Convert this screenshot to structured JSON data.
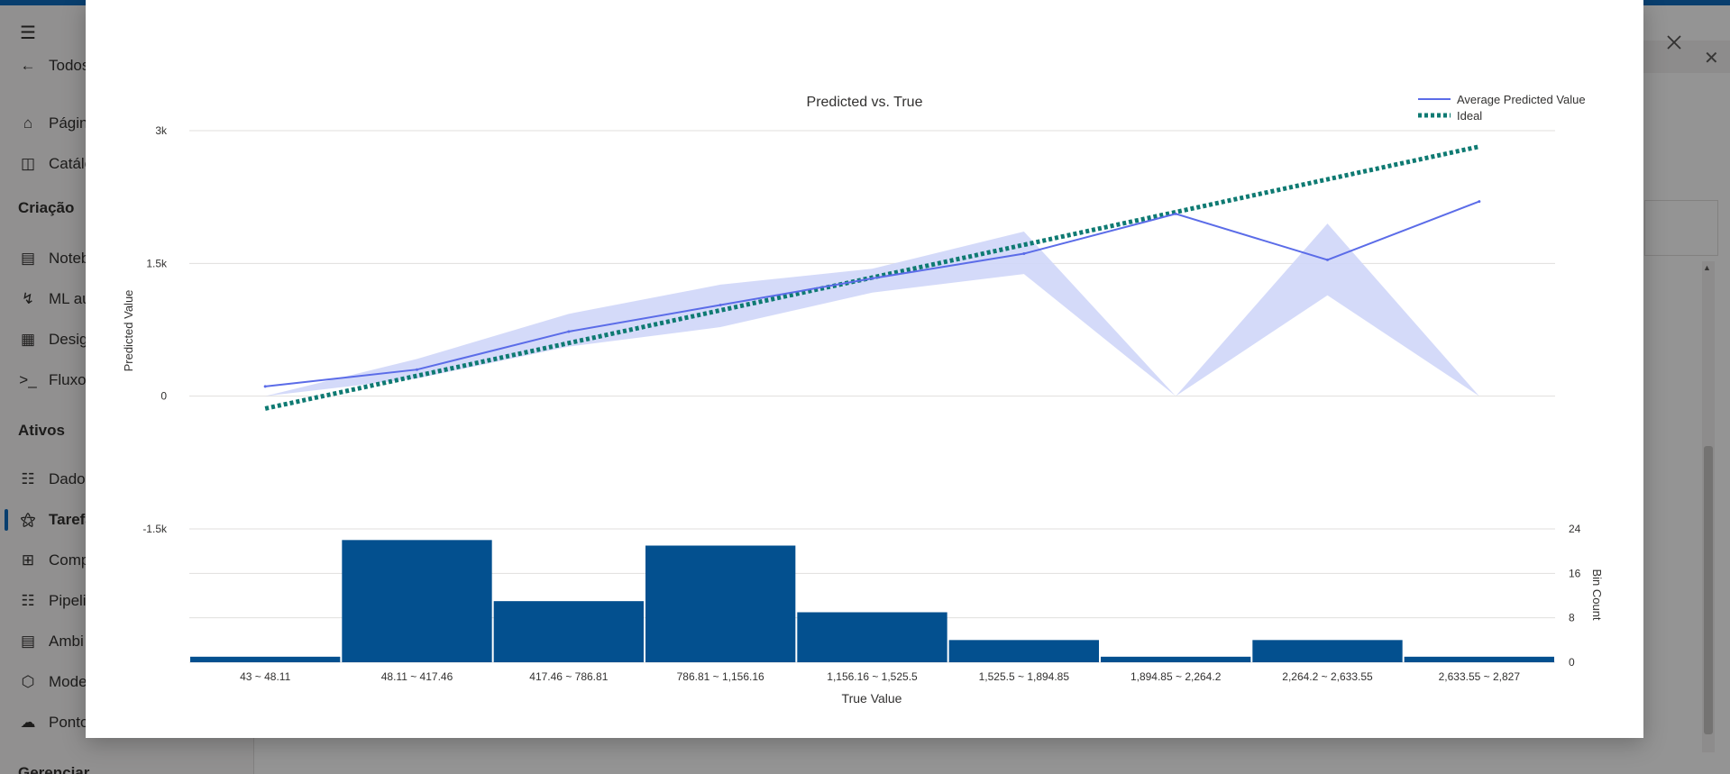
{
  "sidebar": {
    "items": [
      {
        "label": "Todos",
        "icon": "back-arrow-icon"
      },
      {
        "label": "Págin",
        "icon": "home-icon"
      },
      {
        "label": "Catálo",
        "icon": "catalog-icon"
      }
    ],
    "section_create": "Criação",
    "create_items": [
      {
        "label": "Noteb",
        "icon": "notebook-icon"
      },
      {
        "label": "ML au",
        "icon": "automl-icon"
      },
      {
        "label": "Desig",
        "icon": "designer-icon"
      },
      {
        "label": "Fluxo",
        "icon": "prompt-flow-icon"
      }
    ],
    "section_assets": "Ativos",
    "asset_items": [
      {
        "label": "Dado",
        "icon": "data-icon"
      },
      {
        "label": "Tarefa",
        "icon": "jobs-flask-icon",
        "active": true
      },
      {
        "label": "Comp",
        "icon": "components-icon"
      },
      {
        "label": "Pipeli",
        "icon": "pipeline-icon"
      },
      {
        "label": "Ambi",
        "icon": "environment-icon"
      },
      {
        "label": "Mode",
        "icon": "model-cube-icon"
      },
      {
        "label": "Ponto",
        "icon": "endpoint-icon"
      }
    ],
    "section_manage": "Gerenciar"
  },
  "modal": {
    "close_icon": "close-icon"
  },
  "colors": {
    "predicted_line": "#5b6ce8",
    "band_fill": "#cfd6f8",
    "ideal_line": "#0e7a72",
    "bars": "#03508f",
    "accent": "#0f6cbd"
  },
  "chart_data": {
    "type": "line",
    "title": "Predicted vs. True",
    "ylabel": "Predicted Value",
    "xlabel": "True Value",
    "y2label": "Bin Count",
    "ylim": [
      -1500,
      3000
    ],
    "y_ticks": [
      "3k",
      "1.5k",
      "0",
      "-1.5k"
    ],
    "y_tick_values": [
      3000,
      1500,
      0,
      -1500
    ],
    "y2lim": [
      0,
      24
    ],
    "y2_ticks": [
      "24",
      "16",
      "8",
      "0"
    ],
    "y2_tick_values": [
      24,
      16,
      8,
      0
    ],
    "legend_position": "top-right",
    "categories": [
      "43 ~ 48.11",
      "48.11 ~ 417.46",
      "417.46 ~ 786.81",
      "786.81 ~ 1,156.16",
      "1,156.16 ~ 1,525.5",
      "1,525.5 ~ 1,894.85",
      "1,894.85 ~ 2,264.2",
      "2,264.2 ~ 2,633.55",
      "2,633.55 ~ 2,827"
    ],
    "series": [
      {
        "name": "Average Predicted Value",
        "values": [
          110,
          300,
          730,
          1030,
          1330,
          1610,
          2060,
          1540,
          2200
        ]
      },
      {
        "name": "Ideal",
        "values": [
          -140,
          230,
          600,
          970,
          1340,
          1710,
          2080,
          2450,
          2820
        ]
      }
    ],
    "band": {
      "upper": [
        0,
        420,
        930,
        1260,
        1440,
        1860,
        0,
        1950,
        0
      ],
      "lower": [
        0,
        200,
        560,
        780,
        1170,
        1380,
        0,
        1140,
        0
      ]
    },
    "bin_counts": [
      1,
      22,
      11,
      21,
      9,
      4,
      1,
      4,
      1
    ]
  }
}
